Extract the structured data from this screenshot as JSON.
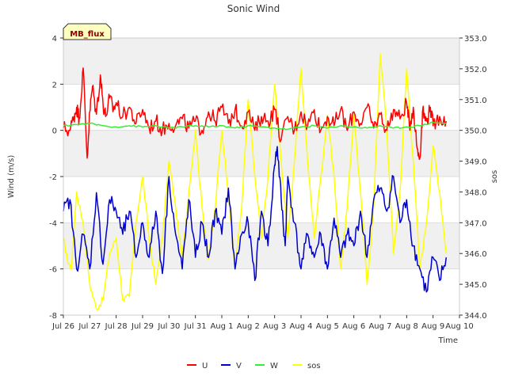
{
  "chart_data": {
    "type": "line",
    "title": "Sonic Wind",
    "badge": "MB_flux",
    "xlabel": "Time",
    "ylabel": "Wind (m/s)",
    "y2label": "sos",
    "x_tick_labels": [
      "Jul 26",
      "Jul 27",
      "Jul 28",
      "Jul 29",
      "Jul 30",
      "Jul 31",
      "Aug 1",
      "Aug 2",
      "Aug 3",
      "Aug 4",
      "Aug 5",
      "Aug 6",
      "Aug 7",
      "Aug 8",
      "Aug 9",
      "Aug 10"
    ],
    "x_range_days": [
      0,
      15
    ],
    "ylim": [
      -8,
      4
    ],
    "yticks": [
      -8,
      -6,
      -4,
      -2,
      0,
      2,
      4
    ],
    "y2lim": [
      344.0,
      353.0
    ],
    "y2ticks": [
      344.0,
      345.0,
      346.0,
      347.0,
      348.0,
      349.0,
      350.0,
      351.0,
      352.0,
      353.0
    ],
    "y2tick_labels": [
      "344.0",
      "345.0",
      "346.0",
      "347.0",
      "348.0",
      "349.0",
      "350.0",
      "351.0",
      "352.0",
      "353.0"
    ],
    "grid": true,
    "legend_position": "bottom-center",
    "series": [
      {
        "name": "U",
        "axis": "left",
        "color": "#ff0000",
        "x": [
          0.0,
          0.25,
          0.4,
          0.5,
          0.6,
          0.75,
          0.9,
          1.0,
          1.1,
          1.25,
          1.4,
          1.5,
          1.6,
          1.75,
          1.9,
          2.0,
          2.25,
          2.5,
          2.75,
          3.0,
          3.25,
          3.5,
          3.75,
          4.0,
          4.25,
          4.5,
          4.75,
          5.0,
          5.25,
          5.5,
          5.75,
          6.0,
          6.25,
          6.5,
          6.75,
          7.0,
          7.25,
          7.5,
          7.75,
          8.0,
          8.25,
          8.5,
          8.75,
          9.0,
          9.25,
          9.5,
          9.75,
          10.0,
          10.25,
          10.5,
          10.75,
          11.0,
          11.25,
          11.5,
          11.75,
          12.0,
          12.25,
          12.5,
          12.75,
          13.0,
          13.1,
          13.25,
          13.4,
          13.5,
          13.6,
          13.75,
          13.9,
          14.0,
          14.25,
          14.5
        ],
        "values": [
          0.1,
          0.0,
          0.6,
          1.0,
          0.5,
          2.7,
          -1.2,
          0.8,
          1.9,
          0.7,
          2.4,
          1.2,
          0.6,
          1.4,
          0.9,
          1.2,
          0.6,
          1.0,
          0.3,
          0.9,
          0.1,
          0.4,
          0.0,
          0.3,
          0.2,
          0.5,
          0.1,
          0.4,
          0.0,
          0.8,
          0.4,
          1.0,
          0.3,
          0.9,
          0.2,
          0.8,
          0.0,
          0.6,
          0.4,
          0.9,
          -0.4,
          0.6,
          0.0,
          0.8,
          0.2,
          0.9,
          0.0,
          0.6,
          0.2,
          0.9,
          0.0,
          0.8,
          0.3,
          1.0,
          0.1,
          0.7,
          0.0,
          0.9,
          0.5,
          1.2,
          0.2,
          1.0,
          -0.8,
          -1.2,
          0.8,
          0.4,
          1.0,
          0.2,
          0.6,
          0.4
        ]
      },
      {
        "name": "V",
        "axis": "left",
        "color": "#0000cc",
        "x": [
          0.0,
          0.25,
          0.5,
          0.75,
          1.0,
          1.25,
          1.5,
          1.75,
          2.0,
          2.25,
          2.5,
          2.75,
          3.0,
          3.25,
          3.5,
          3.75,
          4.0,
          4.25,
          4.5,
          4.75,
          5.0,
          5.25,
          5.5,
          5.75,
          6.0,
          6.25,
          6.5,
          6.75,
          7.0,
          7.25,
          7.5,
          7.75,
          8.0,
          8.1,
          8.25,
          8.4,
          8.5,
          8.75,
          9.0,
          9.25,
          9.5,
          9.75,
          10.0,
          10.25,
          10.5,
          10.75,
          11.0,
          11.25,
          11.5,
          11.75,
          12.0,
          12.25,
          12.5,
          12.75,
          13.0,
          13.25,
          13.5,
          13.75,
          14.0,
          14.25,
          14.5
        ],
        "values": [
          -3.5,
          -3.0,
          -6.0,
          -4.5,
          -6.0,
          -2.7,
          -5.8,
          -3.0,
          -3.5,
          -4.5,
          -3.5,
          -5.5,
          -4.0,
          -5.5,
          -3.5,
          -6.2,
          -2.0,
          -4.5,
          -6.0,
          -3.0,
          -5.5,
          -4.0,
          -5.5,
          -3.5,
          -4.5,
          -2.5,
          -6.0,
          -4.5,
          -4.0,
          -6.5,
          -3.5,
          -5.0,
          -1.5,
          -0.7,
          -3.0,
          -5.0,
          -2.0,
          -4.0,
          -6.0,
          -4.5,
          -5.5,
          -4.5,
          -6.0,
          -3.8,
          -5.5,
          -4.5,
          -5.0,
          -3.5,
          -5.5,
          -3.0,
          -2.5,
          -3.5,
          -2.0,
          -4.0,
          -3.0,
          -5.0,
          -6.0,
          -7.0,
          -5.5,
          -6.5,
          -5.5
        ]
      },
      {
        "name": "W",
        "axis": "left",
        "color": "#33ee33",
        "x": [
          0.0,
          0.5,
          1.0,
          1.5,
          2.0,
          2.5,
          3.0,
          3.5,
          4.0,
          4.5,
          5.0,
          5.5,
          6.0,
          6.5,
          7.0,
          7.5,
          8.0,
          8.5,
          9.0,
          9.5,
          10.0,
          10.5,
          11.0,
          11.5,
          12.0,
          12.5,
          13.0,
          13.5,
          14.0,
          14.5
        ],
        "values": [
          0.2,
          0.25,
          0.3,
          0.2,
          0.15,
          0.2,
          0.15,
          0.2,
          0.1,
          0.15,
          0.2,
          0.15,
          0.2,
          0.1,
          0.2,
          0.15,
          0.1,
          0.05,
          0.15,
          0.2,
          0.1,
          0.2,
          0.15,
          0.1,
          0.2,
          0.1,
          0.15,
          0.2,
          0.35,
          0.3
        ]
      },
      {
        "name": "sos",
        "axis": "right",
        "color": "#ffff00",
        "x": [
          0.0,
          0.15,
          0.3,
          0.5,
          0.75,
          1.0,
          1.25,
          1.5,
          1.75,
          2.0,
          2.25,
          2.5,
          2.75,
          3.0,
          3.25,
          3.5,
          3.75,
          4.0,
          4.25,
          4.5,
          4.75,
          5.0,
          5.25,
          5.5,
          5.75,
          6.0,
          6.25,
          6.5,
          6.75,
          7.0,
          7.25,
          7.5,
          7.75,
          8.0,
          8.25,
          8.5,
          8.75,
          9.0,
          9.25,
          9.5,
          9.75,
          10.0,
          10.25,
          10.5,
          10.75,
          11.0,
          11.25,
          11.5,
          11.75,
          12.0,
          12.25,
          12.5,
          12.75,
          13.0,
          13.25,
          13.5,
          13.75,
          14.0,
          14.25,
          14.5
        ],
        "values": [
          346.5,
          345.8,
          345.5,
          348.0,
          347.0,
          345.0,
          344.2,
          344.5,
          346.0,
          346.5,
          344.5,
          344.6,
          347.0,
          348.5,
          346.5,
          345.0,
          346.5,
          349.0,
          347.5,
          345.8,
          348.0,
          350.0,
          347.5,
          345.8,
          347.5,
          350.0,
          348.0,
          345.5,
          347.5,
          351.0,
          348.5,
          346.5,
          348.5,
          351.5,
          349.0,
          346.5,
          349.0,
          352.0,
          349.0,
          346.5,
          348.5,
          350.5,
          348.5,
          345.5,
          347.5,
          350.5,
          348.0,
          345.0,
          347.5,
          352.5,
          350.0,
          346.0,
          348.0,
          352.0,
          349.0,
          345.5,
          347.0,
          349.5,
          348.0,
          346.0
        ]
      }
    ]
  }
}
